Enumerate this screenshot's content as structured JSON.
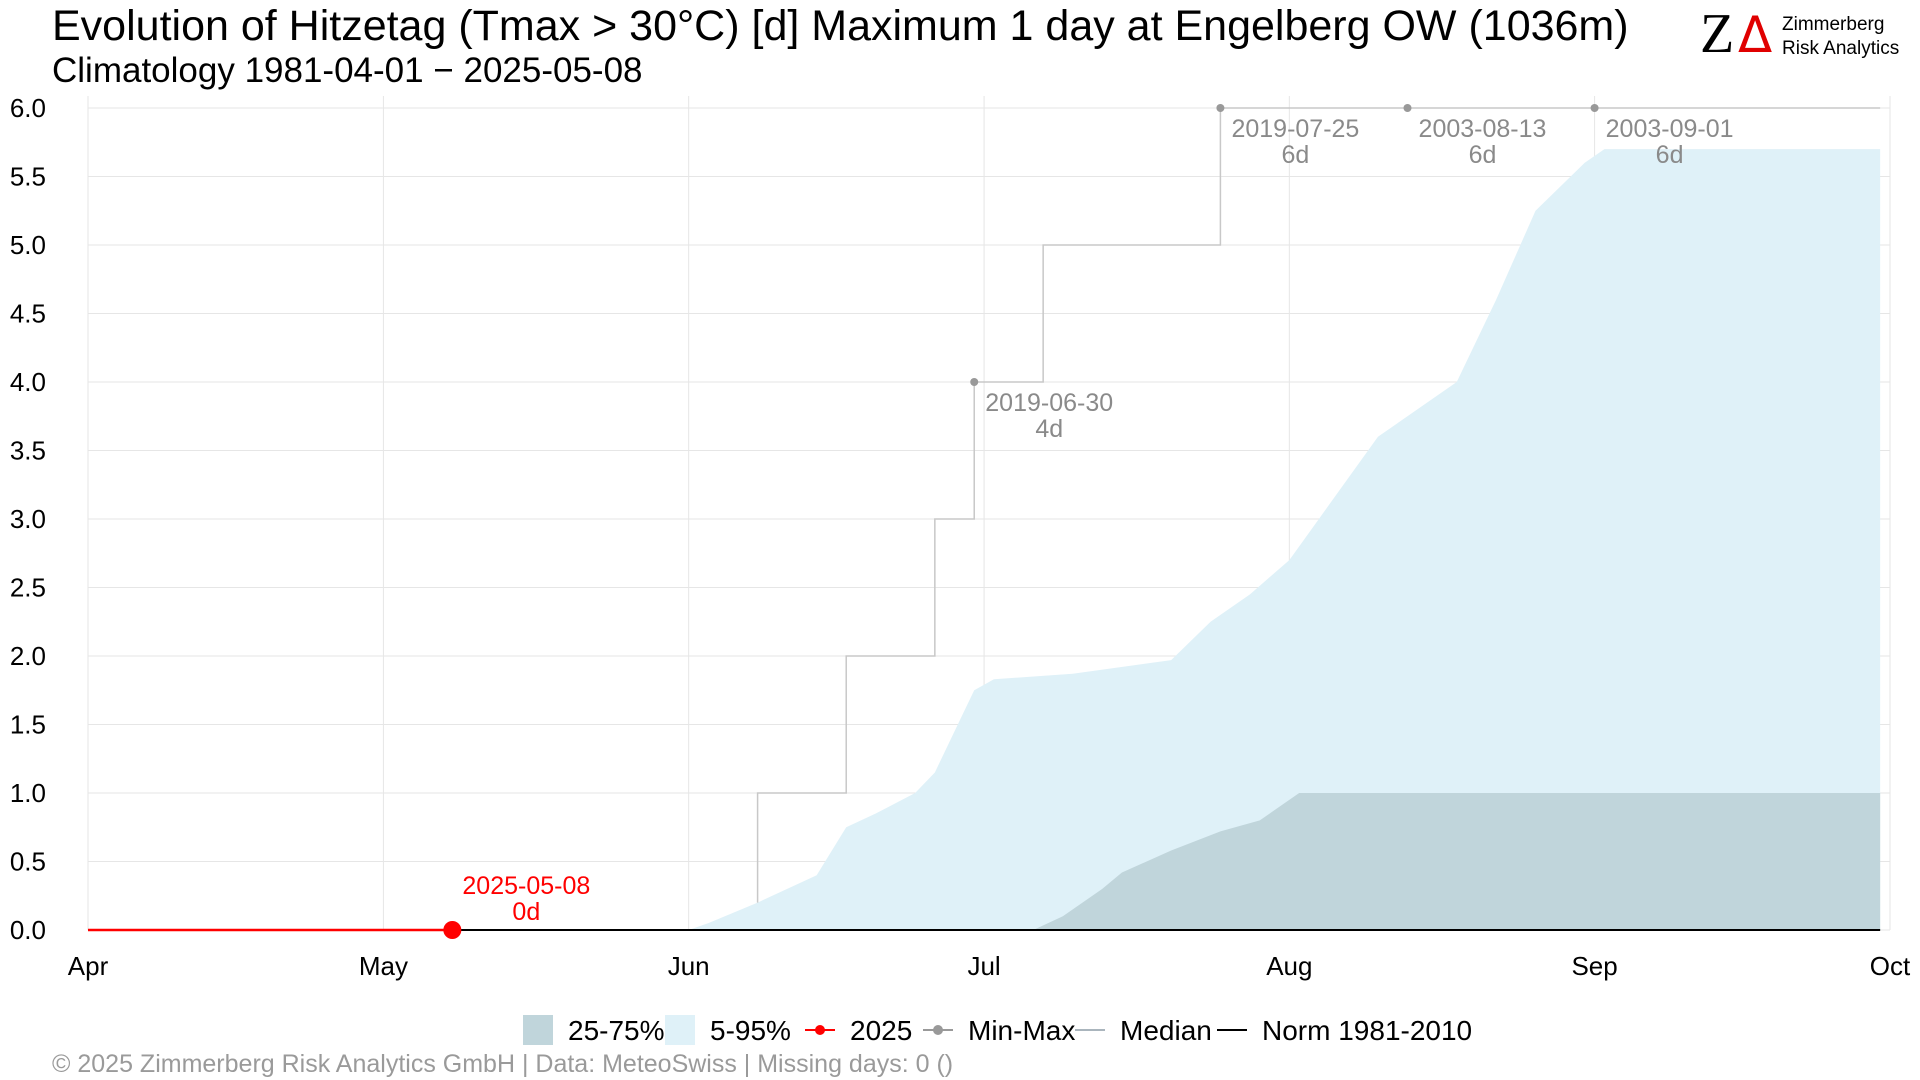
{
  "title": "Evolution of Hitzetag (Tmax > 30°C) [d] Maximum 1 day at Engelberg  OW (1036m)",
  "subtitle": "Climatology 1981-04-01 − 2025-05-08",
  "footer": "©  2025 Zimmerberg Risk Analytics GmbH | Data: MeteoSwiss | Missing days: 0 ()",
  "logo": {
    "mark": "Z",
    "delta": "Δ",
    "line1": "Zimmerberg",
    "line2": "Risk Analytics"
  },
  "colors": {
    "band_5_95": "#dff1f8",
    "band_25_75": "#c0d5db",
    "current": "#ff0000",
    "minmax": "#999999",
    "median": "#aab5bd",
    "norm": "#000000",
    "grid": "#e6e6e6",
    "annotation": "#8a8a8a"
  },
  "chart_data": {
    "type": "area",
    "x_axis": {
      "start": "2025-04-01",
      "end": "2025-09-30",
      "tick_dates": [
        "2025-04-01",
        "2025-05-01",
        "2025-06-01",
        "2025-07-01",
        "2025-08-01",
        "2025-09-01",
        "2025-10-01"
      ],
      "tick_labels": [
        "Apr",
        "May",
        "Jun",
        "Jul",
        "Aug",
        "Sep",
        "Oct"
      ]
    },
    "y_axis": {
      "ylim": [
        0,
        6
      ],
      "ticks": [
        0,
        0.5,
        1,
        1.5,
        2,
        2.5,
        3,
        3.5,
        4,
        4.5,
        5,
        5.5,
        6
      ],
      "tick_labels": [
        "0.0",
        "0.5",
        "1.0",
        "1.5",
        "2.0",
        "2.5",
        "3.0",
        "3.5",
        "4.0",
        "4.5",
        "5.0",
        "5.5",
        "6.0"
      ]
    },
    "grid": true,
    "legend_position": "bottom",
    "legend": [
      {
        "label": "25-75%",
        "kind": "box",
        "color": "#c0d5db"
      },
      {
        "label": "5-95%",
        "kind": "box",
        "color": "#dff1f8"
      },
      {
        "label": "2025",
        "kind": "line-point",
        "color": "#ff0000"
      },
      {
        "label": "Min-Max",
        "kind": "line-point",
        "color": "#999999"
      },
      {
        "label": "Median",
        "kind": "line",
        "color": "#aab5bd"
      },
      {
        "label": "Norm 1981-2010",
        "kind": "line",
        "color": "#000000"
      }
    ],
    "series": [
      {
        "name": "5-95%",
        "kind": "band",
        "points": [
          [
            "2025-06-01",
            0
          ],
          [
            "2025-06-03",
            0.05
          ],
          [
            "2025-06-08",
            0.2
          ],
          [
            "2025-06-14",
            0.4
          ],
          [
            "2025-06-17",
            0.75
          ],
          [
            "2025-06-20",
            0.85
          ],
          [
            "2025-06-24",
            1.0
          ],
          [
            "2025-06-26",
            1.15
          ],
          [
            "2025-06-29",
            1.6
          ],
          [
            "2025-06-30",
            1.75
          ],
          [
            "2025-07-02",
            1.83
          ],
          [
            "2025-07-10",
            1.87
          ],
          [
            "2025-07-20",
            1.97
          ],
          [
            "2025-07-24",
            2.25
          ],
          [
            "2025-07-28",
            2.45
          ],
          [
            "2025-08-01",
            2.7
          ],
          [
            "2025-08-05",
            3.1
          ],
          [
            "2025-08-10",
            3.6
          ],
          [
            "2025-08-14",
            3.8
          ],
          [
            "2025-08-18",
            4.0
          ],
          [
            "2025-08-22",
            4.6
          ],
          [
            "2025-08-26",
            5.25
          ],
          [
            "2025-08-31",
            5.6
          ],
          [
            "2025-09-02",
            5.7
          ],
          [
            "2025-09-30",
            5.7
          ]
        ]
      },
      {
        "name": "25-75%",
        "kind": "band",
        "points": [
          [
            "2025-07-06",
            0
          ],
          [
            "2025-07-09",
            0.1
          ],
          [
            "2025-07-13",
            0.3
          ],
          [
            "2025-07-15",
            0.42
          ],
          [
            "2025-07-20",
            0.58
          ],
          [
            "2025-07-25",
            0.72
          ],
          [
            "2025-07-29",
            0.8
          ],
          [
            "2025-08-02",
            1.0
          ],
          [
            "2025-09-30",
            1.0
          ]
        ]
      },
      {
        "name": "Min-Max",
        "kind": "step",
        "points": [
          [
            "2025-06-08",
            0.2
          ],
          [
            "2025-06-08",
            1.0
          ],
          [
            "2025-06-17",
            1.0
          ],
          [
            "2025-06-17",
            2.0
          ],
          [
            "2025-06-26",
            2.0
          ],
          [
            "2025-06-26",
            3.0
          ],
          [
            "2025-06-30",
            3.0
          ],
          [
            "2025-06-30",
            4.0
          ],
          [
            "2025-07-07",
            4.0
          ],
          [
            "2025-07-07",
            5.0
          ],
          [
            "2025-07-25",
            5.0
          ],
          [
            "2025-07-25",
            6.0
          ],
          [
            "2025-09-30",
            6.0
          ]
        ],
        "markers": [
          {
            "date": "2019-06-30",
            "x": "2025-06-30",
            "y": 4,
            "label": "4d"
          },
          {
            "date": "2019-07-25",
            "x": "2025-07-25",
            "y": 6,
            "label": "6d"
          },
          {
            "date": "2003-08-13",
            "x": "2025-08-13",
            "y": 6,
            "label": "6d"
          },
          {
            "date": "2003-09-01",
            "x": "2025-09-01",
            "y": 6,
            "label": "6d"
          }
        ]
      },
      {
        "name": "Norm 1981-2010",
        "kind": "line",
        "points": [
          [
            "2025-04-01",
            0
          ],
          [
            "2025-09-30",
            0
          ]
        ]
      },
      {
        "name": "2025",
        "kind": "line",
        "points": [
          [
            "2025-04-01",
            0
          ],
          [
            "2025-05-08",
            0
          ]
        ],
        "current": {
          "date": "2025-05-08",
          "x": "2025-05-08",
          "y": 0,
          "label": "0d"
        }
      }
    ]
  }
}
